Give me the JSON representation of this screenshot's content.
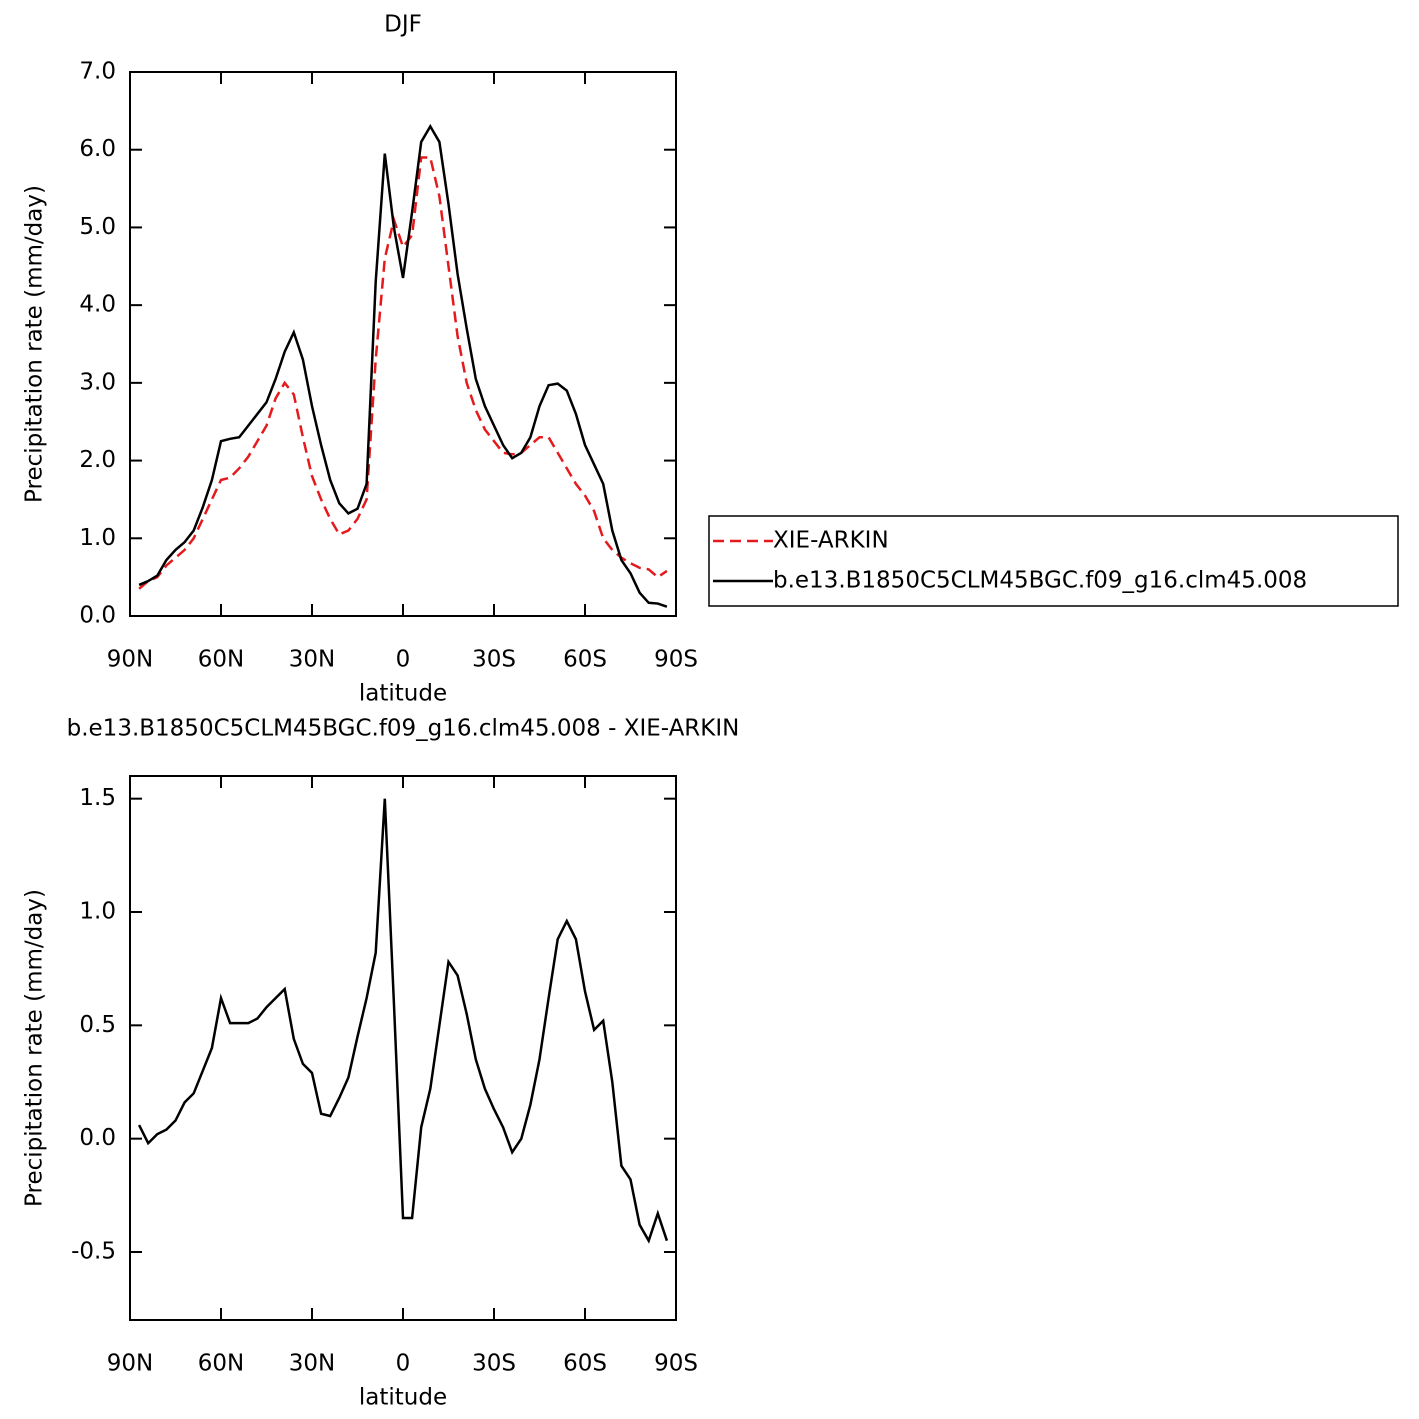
{
  "chart_data": [
    {
      "type": "line",
      "title": "DJF",
      "xlabel": "latitude",
      "ylabel": "Precipitation rate (mm/day)",
      "x": [
        87,
        84,
        81,
        78,
        75,
        72,
        69,
        66,
        63,
        60,
        57,
        54,
        51,
        48,
        45,
        42,
        39,
        36,
        33,
        30,
        27,
        24,
        21,
        18,
        15,
        12,
        9,
        6,
        3,
        0,
        -3,
        -6,
        -9,
        -12,
        -15,
        -18,
        -21,
        -24,
        -27,
        -30,
        -33,
        -36,
        -39,
        -42,
        -45,
        -48,
        -51,
        -54,
        -57,
        -60,
        -63,
        -66,
        -69,
        -72,
        -75,
        -78,
        -81,
        -84,
        -87
      ],
      "series": [
        {
          "name": "XIE-ARKIN",
          "color": "#e41a1c",
          "linestyle": "dashed",
          "values": [
            0.35,
            0.45,
            0.5,
            0.65,
            0.75,
            0.85,
            1.0,
            1.25,
            1.5,
            1.75,
            1.78,
            1.9,
            2.05,
            2.25,
            2.45,
            2.8,
            3.0,
            2.85,
            2.3,
            1.8,
            1.5,
            1.25,
            1.05,
            1.1,
            1.25,
            1.5,
            3.3,
            4.6,
            5.1,
            4.75,
            4.9,
            5.9,
            5.9,
            5.4,
            4.5,
            3.6,
            3.0,
            2.65,
            2.4,
            2.25,
            2.1,
            2.08,
            2.1,
            2.2,
            2.3,
            2.3,
            2.1,
            1.9,
            1.7,
            1.55,
            1.35,
            1.0,
            0.85,
            0.75,
            0.68,
            0.62,
            0.6,
            0.5,
            0.58
          ]
        },
        {
          "name": "b.e13.B1850C5CLM45BGC.f09_g16.clm45.008",
          "color": "#000000",
          "linestyle": "solid",
          "values": [
            0.4,
            0.45,
            0.52,
            0.72,
            0.85,
            0.95,
            1.1,
            1.4,
            1.75,
            2.25,
            2.28,
            2.3,
            2.45,
            2.6,
            2.75,
            3.05,
            3.4,
            3.65,
            3.3,
            2.7,
            2.2,
            1.75,
            1.45,
            1.32,
            1.38,
            1.7,
            4.3,
            5.95,
            5.0,
            4.35,
            5.2,
            6.1,
            6.3,
            6.1,
            5.3,
            4.4,
            3.7,
            3.05,
            2.7,
            2.45,
            2.2,
            2.03,
            2.1,
            2.3,
            2.7,
            2.97,
            2.99,
            2.9,
            2.6,
            2.2,
            1.95,
            1.7,
            1.1,
            0.72,
            0.55,
            0.3,
            0.17,
            0.16,
            0.12
          ]
        }
      ],
      "xlim": [
        90,
        -90
      ],
      "xticks": [
        {
          "value": 90,
          "label": "90N"
        },
        {
          "value": 60,
          "label": "60N"
        },
        {
          "value": 30,
          "label": "30N"
        },
        0,
        {
          "value": -30,
          "label": "30S"
        },
        {
          "value": -60,
          "label": "60S"
        },
        {
          "value": -90,
          "label": "90S"
        }
      ],
      "ylim": [
        0,
        7
      ],
      "yticks": [
        {
          "value": 0,
          "label": "0.0"
        },
        {
          "value": 1,
          "label": "1.0"
        },
        {
          "value": 2,
          "label": "2.0"
        },
        {
          "value": 3,
          "label": "3.0"
        },
        {
          "value": 4,
          "label": "4.0"
        },
        {
          "value": 5,
          "label": "5.0"
        },
        {
          "value": 6,
          "label": "6.0"
        },
        {
          "value": 7,
          "label": "7.0"
        }
      ],
      "legend": "right"
    },
    {
      "type": "line",
      "title": "b.e13.B1850C5CLM45BGC.f09_g16.clm45.008 - XIE-ARKIN",
      "xlabel": "latitude",
      "ylabel": "Precipitation rate (mm/day)",
      "x": [
        87,
        84,
        81,
        78,
        75,
        72,
        69,
        66,
        63,
        60,
        57,
        54,
        51,
        48,
        45,
        42,
        39,
        36,
        33,
        30,
        27,
        24,
        21,
        18,
        15,
        12,
        9,
        6,
        3,
        0,
        -3,
        -6,
        -9,
        -12,
        -15,
        -18,
        -21,
        -24,
        -27,
        -30,
        -33,
        -36,
        -39,
        -42,
        -45,
        -48,
        -51,
        -54,
        -57,
        -60,
        -63,
        -66,
        -69,
        -72,
        -75,
        -78,
        -81,
        -84,
        -87
      ],
      "color": "#000000",
      "values": [
        0.06,
        -0.02,
        0.02,
        0.04,
        0.08,
        0.16,
        0.2,
        0.3,
        0.4,
        0.62,
        0.51,
        0.51,
        0.51,
        0.53,
        0.58,
        0.62,
        0.66,
        0.44,
        0.33,
        0.29,
        0.11,
        0.1,
        0.18,
        0.27,
        0.45,
        0.62,
        0.82,
        1.5,
        0.6,
        -0.35,
        -0.35,
        0.05,
        0.22,
        0.5,
        0.78,
        0.72,
        0.55,
        0.35,
        0.22,
        0.13,
        0.05,
        -0.06,
        0.0,
        0.15,
        0.35,
        0.62,
        0.88,
        0.96,
        0.88,
        0.65,
        0.48,
        0.52,
        0.25,
        -0.12,
        -0.18,
        -0.38,
        -0.45,
        -0.33,
        -0.45
      ],
      "xlim": [
        90,
        -90
      ],
      "xticks": [
        {
          "value": 90,
          "label": "90N"
        },
        {
          "value": 60,
          "label": "60N"
        },
        {
          "value": 30,
          "label": "30N"
        },
        0,
        {
          "value": -30,
          "label": "30S"
        },
        {
          "value": -60,
          "label": "60S"
        },
        {
          "value": -90,
          "label": "90S"
        }
      ],
      "ylim": [
        -0.8,
        1.6
      ],
      "yticks": [
        {
          "value": -0.5,
          "label": "-0.5"
        },
        {
          "value": 0,
          "label": "0.0"
        },
        {
          "value": 0.5,
          "label": "0.5"
        },
        {
          "value": 1,
          "label": "1.0"
        },
        {
          "value": 1.5,
          "label": "1.5"
        }
      ]
    }
  ]
}
